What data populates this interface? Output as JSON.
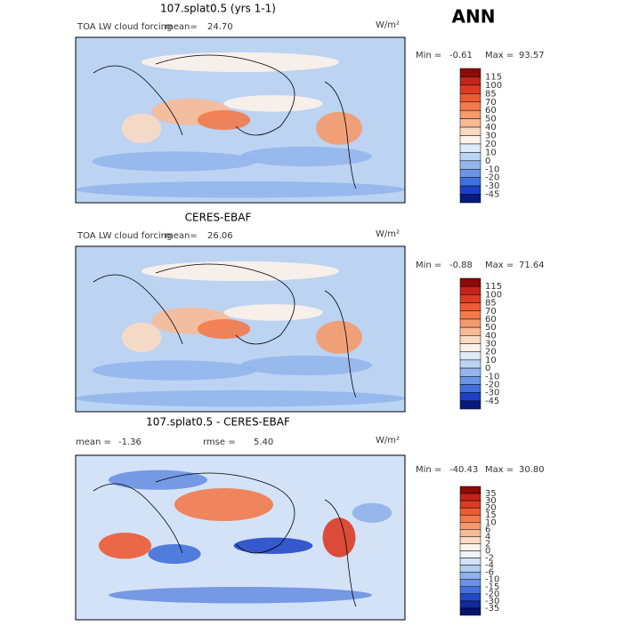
{
  "header": "ANN",
  "panels": [
    {
      "title": "107.splat0.5 (yrs 1-1)",
      "label": "TOA LW cloud forcing",
      "mean_label": "mean=",
      "mean": "24.70",
      "units": "W/m²",
      "min_label": "Min =",
      "min": "-0.61",
      "max_label": "Max =",
      "max": "93.57",
      "colorbar": {
        "levels": [
          115,
          100,
          85,
          70,
          60,
          50,
          40,
          30,
          20,
          10,
          0,
          -10,
          -20,
          -30,
          -45
        ],
        "colors": [
          "#8c0a0a",
          "#c4231a",
          "#dd3b25",
          "#ec5b34",
          "#f27a4c",
          "#f59a6c",
          "#f8ba96",
          "#fbd9c2",
          "#fdf2e9",
          "#dfeaf8",
          "#bcd3f2",
          "#94b6ec",
          "#6b95e4",
          "#3f6fe0",
          "#1c3fc6",
          "#0a1a7a"
        ]
      }
    },
    {
      "title": "CERES-EBAF",
      "label": "TOA LW cloud forcing",
      "mean_label": "mean=",
      "mean": "26.06",
      "units": "W/m²",
      "min_label": "Min =",
      "min": "-0.88",
      "max_label": "Max =",
      "max": "71.64",
      "colorbar": {
        "levels": [
          115,
          100,
          85,
          70,
          60,
          50,
          40,
          30,
          20,
          10,
          0,
          -10,
          -20,
          -30,
          -45
        ],
        "colors": [
          "#8c0a0a",
          "#c4231a",
          "#dd3b25",
          "#ec5b34",
          "#f27a4c",
          "#f59a6c",
          "#f8ba96",
          "#fbd9c2",
          "#fdf2e9",
          "#dfeaf8",
          "#bcd3f2",
          "#94b6ec",
          "#6b95e4",
          "#3f6fe0",
          "#1c3fc6",
          "#0a1a7a"
        ]
      }
    },
    {
      "title": "107.splat0.5 - CERES-EBAF",
      "label": "",
      "mean_label": "mean =",
      "mean": "-1.36",
      "rmse_label": "rmse =",
      "rmse": "5.40",
      "units": "W/m²",
      "min_label": "Min =",
      "min": "-40.43",
      "max_label": "Max =",
      "max": "30.80",
      "colorbar": {
        "levels": [
          35,
          30,
          20,
          15,
          10,
          6,
          4,
          2,
          0,
          -2,
          -4,
          -6,
          -10,
          -15,
          -20,
          -30,
          -35
        ],
        "colors": [
          "#8c0a0a",
          "#c4231a",
          "#dd3b25",
          "#ec5b34",
          "#f27a4c",
          "#f59a6c",
          "#f8ba96",
          "#fbd9c2",
          "#fdf2e9",
          "#eef4fb",
          "#d3e2f6",
          "#b4cdf0",
          "#8fb0ea",
          "#6a91e3",
          "#4470dc",
          "#2349c8",
          "#11299a",
          "#06136a"
        ]
      }
    }
  ]
}
